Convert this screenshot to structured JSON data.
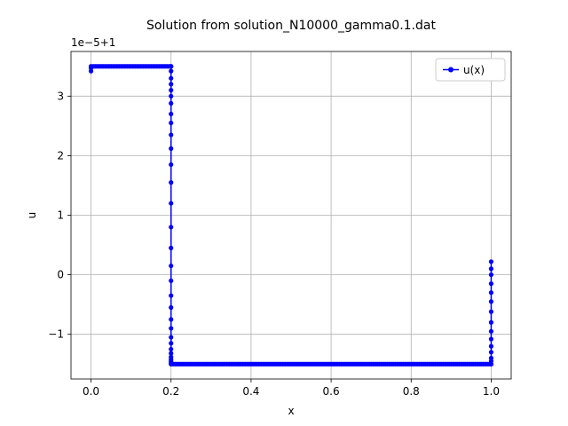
{
  "chart_data": {
    "type": "line",
    "title": "Solution from solution_N10000_gamma0.1.dat",
    "xlabel": "x",
    "ylabel": "u",
    "offset_label": "1e−5+1",
    "xlim": [
      -0.05,
      1.05
    ],
    "ylim": [
      -1.75,
      3.75
    ],
    "xticks": [
      0.0,
      0.2,
      0.4,
      0.6,
      0.8,
      1.0
    ],
    "xtick_labels": [
      "0.0",
      "0.2",
      "0.4",
      "0.6",
      "0.8",
      "1.0"
    ],
    "yticks": [
      -1,
      0,
      1,
      2,
      3
    ],
    "ytick_labels": [
      "−1",
      "0",
      "1",
      "2",
      "3"
    ],
    "y_units_note": "y values are in units of 1e-5 relative to 1",
    "grid": true,
    "legend": {
      "position": "top-right",
      "entries": [
        "u(x)"
      ]
    },
    "colors": {
      "series": "#0000ff",
      "grid": "#b0b0b0",
      "axes": "#000000"
    },
    "series": [
      {
        "name": "u(x)",
        "marker": "circle",
        "plateau_left": {
          "x_start": 0.0,
          "x_end": 0.2,
          "y": 3.5,
          "start_values": [
            3.42,
            3.47
          ]
        },
        "transition_down": {
          "x": 0.2,
          "values": [
            3.5,
            3.42,
            3.3,
            3.2,
            3.1,
            3.0,
            2.88,
            2.7,
            2.55,
            2.35,
            2.12,
            1.85,
            1.55,
            1.2,
            0.8,
            0.45,
            0.15,
            -0.1,
            -0.35,
            -0.55,
            -0.75,
            -0.9,
            -1.05,
            -1.15,
            -1.25,
            -1.32,
            -1.38,
            -1.42,
            -1.45,
            -1.48,
            -1.5
          ]
        },
        "plateau_right": {
          "x_start": 0.2,
          "x_end": 1.0,
          "y": -1.5
        },
        "transition_up": {
          "x": 1.0,
          "values": [
            -1.5,
            -1.45,
            -1.4,
            -1.3,
            -1.2,
            -1.08,
            -0.95,
            -0.8,
            -0.62,
            -0.45,
            -0.3,
            -0.15,
            0.0,
            0.1,
            0.22
          ]
        }
      }
    ]
  }
}
